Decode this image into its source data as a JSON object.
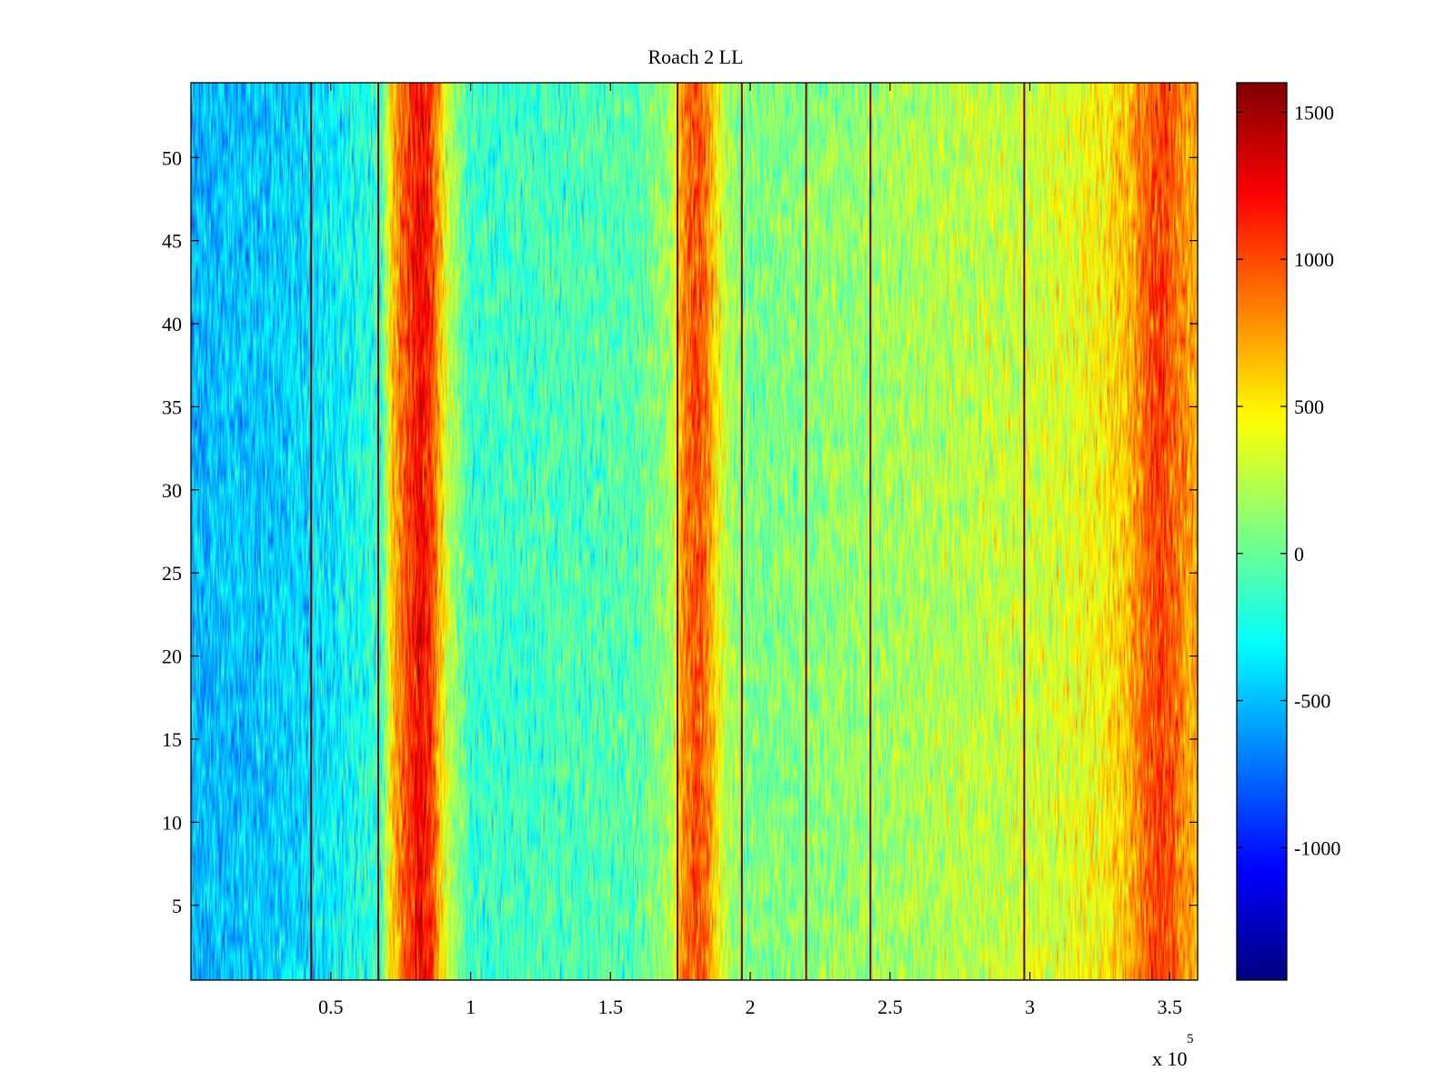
{
  "chart_data": {
    "type": "heatmap",
    "title": "Roach 2 LL",
    "xlabel": "",
    "ylabel": "",
    "colormap": "jet",
    "grid": false,
    "x_range": [
      0,
      360000
    ],
    "y_range": [
      0.5,
      54.5
    ],
    "rows": 54,
    "x_ticks": [
      50000,
      100000,
      150000,
      200000,
      250000,
      300000,
      350000
    ],
    "x_tick_labels": [
      "0.5",
      "1",
      "1.5",
      "2",
      "2.5",
      "3",
      "3.5"
    ],
    "x_exponent_label": "x 10",
    "x_exponent_power": "5",
    "y_ticks": [
      5,
      10,
      15,
      20,
      25,
      30,
      35,
      40,
      45,
      50
    ],
    "y_tick_labels": [
      "5",
      "10",
      "15",
      "20",
      "25",
      "30",
      "35",
      "40",
      "45",
      "50"
    ],
    "colorbar": {
      "range": [
        -1450,
        1600
      ],
      "ticks": [
        1500,
        1000,
        500,
        0,
        -500,
        -1000
      ],
      "tick_labels": [
        "1500",
        "1000",
        "500",
        "0",
        "-500",
        "-1000"
      ]
    },
    "spike_lines_x": [
      43000,
      67000,
      174000,
      197000,
      220000,
      243000,
      298000
    ],
    "profile": {
      "x": [
        0,
        20000,
        40000,
        55000,
        68000,
        72000,
        78000,
        82000,
        86000,
        92000,
        100000,
        130000,
        160000,
        172000,
        176000,
        180000,
        184000,
        188000,
        192000,
        200000,
        240000,
        280000,
        310000,
        325000,
        335000,
        342000,
        347000,
        352000,
        356000,
        360000
      ],
      "mean": [
        -520,
        -480,
        -420,
        -300,
        -150,
        650,
        1050,
        1250,
        1050,
        300,
        -150,
        -100,
        -50,
        200,
        800,
        1000,
        900,
        500,
        200,
        50,
        150,
        250,
        330,
        450,
        650,
        950,
        1050,
        900,
        750,
        700
      ]
    }
  }
}
